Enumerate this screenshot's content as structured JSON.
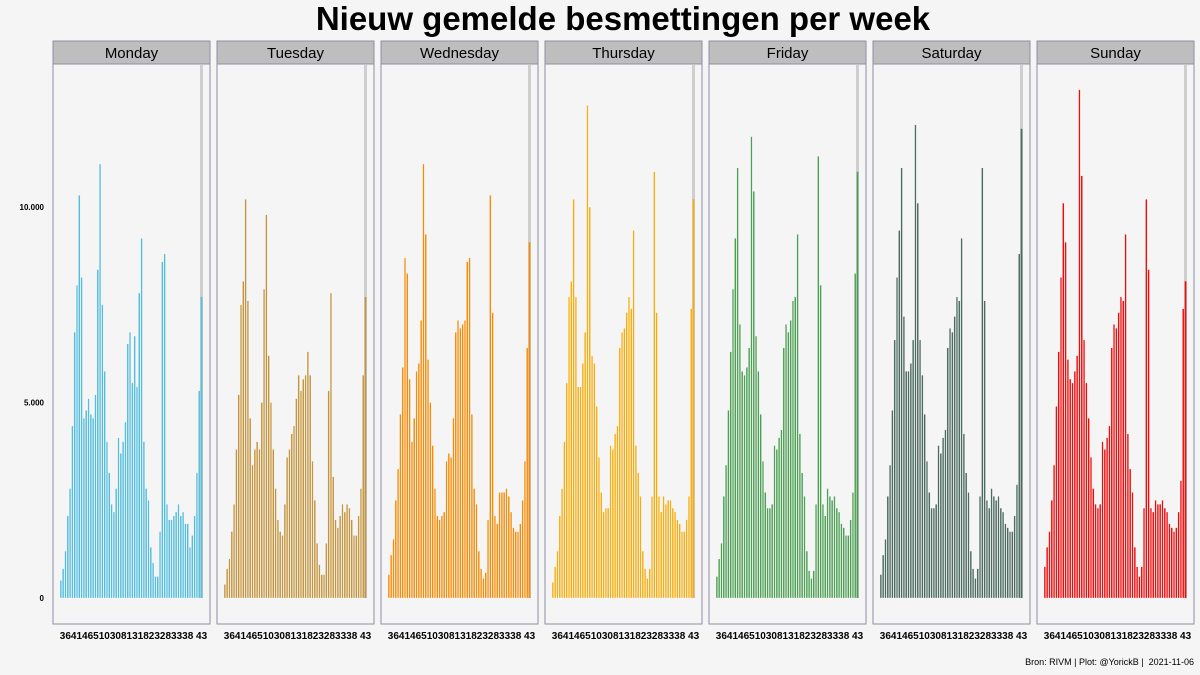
{
  "chart_data": {
    "type": "bar",
    "title": "Nieuw gemelde besmettingen per week",
    "caption": "Bron: RIVM | Plot: @YorickB |  2021-11-06",
    "x_tick_label": "364146510308131823283338 43",
    "y_ticks": [
      {
        "value": 0,
        "label": "0"
      },
      {
        "value": 5000,
        "label": "5.000"
      },
      {
        "value": 10000,
        "label": "10.000"
      }
    ],
    "ylim": [
      0,
      13400
    ],
    "facets": [
      {
        "name": "Monday",
        "color": "#56bcdb",
        "values": [
          450,
          750,
          1200,
          2100,
          2800,
          4400,
          6800,
          8000,
          10300,
          8200,
          4600,
          4800,
          5100,
          4700,
          4600,
          5200,
          8400,
          11100,
          7500,
          5800,
          4000,
          3200,
          2400,
          2200,
          2800,
          4100,
          3700,
          4000,
          4500,
          6500,
          6800,
          5500,
          6700,
          5400,
          7800,
          9200,
          4000,
          2800,
          2500,
          1300,
          900,
          550,
          550,
          1700,
          8600,
          8800,
          2400,
          2000,
          2000,
          2100,
          2200,
          2400,
          2100,
          2200,
          1900,
          1900,
          1300,
          1600,
          2100,
          3200,
          5300,
          7700
        ]
      },
      {
        "name": "Tuesday",
        "color": "#c39540",
        "values": [
          350,
          750,
          1000,
          1700,
          2400,
          3800,
          5200,
          7500,
          8100,
          10200,
          7600,
          4600,
          3400,
          3800,
          4000,
          3800,
          5000,
          7900,
          9800,
          6200,
          5000,
          3800,
          2800,
          2000,
          1700,
          1600,
          2400,
          3600,
          3800,
          4200,
          4400,
          5100,
          5700,
          5300,
          5600,
          5700,
          6300,
          5700,
          3500,
          2500,
          1400,
          850,
          600,
          600,
          1400,
          5300,
          7800,
          3100,
          2000,
          1800,
          2100,
          2400,
          2200,
          2400,
          2300,
          2000,
          1600,
          1600,
          2100,
          2800,
          5700,
          7700
        ]
      },
      {
        "name": "Wednesday",
        "color": "#f18c0c",
        "values": [
          600,
          1100,
          1500,
          2500,
          3300,
          4700,
          5900,
          8700,
          8300,
          5600,
          4000,
          4600,
          5800,
          6000,
          7100,
          11100,
          9300,
          6100,
          5000,
          3900,
          2800,
          2100,
          2000,
          2100,
          2200,
          3500,
          3700,
          3600,
          4600,
          6800,
          7100,
          6900,
          7000,
          7100,
          8600,
          8700,
          4700,
          2800,
          2400,
          1200,
          750,
          500,
          650,
          2000,
          10300,
          7300,
          2100,
          1900,
          2700,
          2700,
          2700,
          2800,
          2600,
          2200,
          1800,
          1700,
          1700,
          1900,
          2500,
          3500,
          6400,
          9100
        ]
      },
      {
        "name": "Thursday",
        "color": "#f5ad14",
        "values": [
          400,
          800,
          1200,
          2100,
          2800,
          4000,
          5500,
          7700,
          8100,
          10200,
          7700,
          5400,
          5400,
          6000,
          6800,
          12600,
          10000,
          6200,
          6000,
          4900,
          3600,
          2700,
          2200,
          2300,
          2300,
          3900,
          3800,
          4200,
          4400,
          6400,
          6800,
          6900,
          7300,
          7700,
          7400,
          9400,
          3900,
          3200,
          2600,
          1200,
          750,
          500,
          750,
          2600,
          10900,
          7300,
          2600,
          2200,
          2600,
          2400,
          2500,
          2500,
          2300,
          2200,
          2000,
          1900,
          1700,
          1700,
          2000,
          2600,
          7400,
          10200
        ]
      },
      {
        "name": "Friday",
        "color": "#4e9f55",
        "values": [
          550,
          1000,
          1400,
          2600,
          3400,
          4800,
          6300,
          7900,
          9200,
          11000,
          7000,
          5800,
          5700,
          5900,
          6400,
          11800,
          10400,
          6700,
          5800,
          4700,
          3500,
          2700,
          2300,
          2300,
          2400,
          3900,
          3800,
          4100,
          4300,
          6400,
          7000,
          6800,
          7100,
          7600,
          7700,
          9300,
          4200,
          3200,
          2600,
          1200,
          700,
          500,
          700,
          2400,
          11300,
          8000,
          2400,
          2100,
          2800,
          2600,
          2500,
          2600,
          2300,
          2200,
          1900,
          1800,
          1600,
          1600,
          2000,
          2700,
          8300,
          10900
        ]
      },
      {
        "name": "Saturday",
        "color": "#4c6a60",
        "values": [
          600,
          1100,
          1500,
          2600,
          3400,
          4800,
          6600,
          8200,
          9400,
          11000,
          7200,
          5800,
          5800,
          6000,
          6600,
          12100,
          10100,
          6600,
          5700,
          4700,
          3500,
          2700,
          2300,
          2300,
          2400,
          3900,
          3700,
          4100,
          4300,
          6400,
          6900,
          6800,
          7200,
          7700,
          7600,
          9200,
          4200,
          3200,
          2700,
          1200,
          750,
          500,
          750,
          2600,
          11000,
          7600,
          2500,
          2300,
          2800,
          2600,
          2500,
          2600,
          2300,
          2200,
          1900,
          1800,
          1700,
          1700,
          2100,
          2900,
          8800,
          12000
        ]
      },
      {
        "name": "Sunday",
        "color": "#e80e0e",
        "values": [
          800,
          1300,
          1700,
          2500,
          3400,
          4900,
          6300,
          8200,
          10100,
          9100,
          6100,
          5600,
          5500,
          5800,
          6200,
          13000,
          10800,
          6600,
          5500,
          4600,
          3600,
          2800,
          2400,
          2300,
          2400,
          4000,
          3800,
          4100,
          4400,
          6400,
          7000,
          6900,
          7300,
          7700,
          7600,
          9300,
          4200,
          3300,
          2700,
          1300,
          800,
          550,
          800,
          2300,
          10200,
          8400,
          2300,
          2200,
          2500,
          2400,
          2400,
          2500,
          2300,
          2200,
          1900,
          1800,
          1700,
          1800,
          2200,
          3000,
          7400,
          8100
        ]
      }
    ]
  }
}
